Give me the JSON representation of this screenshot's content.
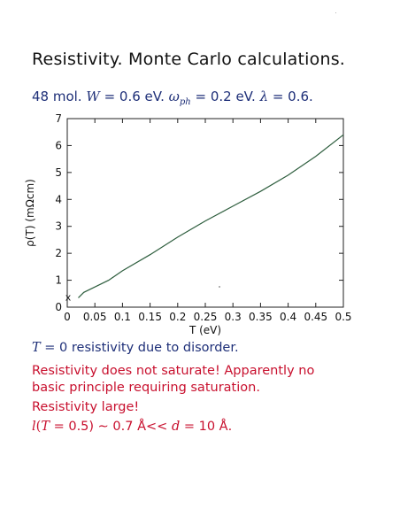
{
  "title": "Resistivity.  Monte Carlo calculations.",
  "params": {
    "prefix": "48 mol.",
    "W_symbol": "W",
    "W_value": " = 0.6 eV.",
    "omega_symbol": "ω",
    "omega_sub": "ph",
    "omega_value": " = 0.2 eV.",
    "lambda_symbol": "λ",
    "lambda_value": " = 0.6."
  },
  "chart_data": {
    "type": "line",
    "xlabel": "T (eV)",
    "ylabel": "ρ(T) (mΩcm)",
    "xlim": [
      0,
      0.5
    ],
    "ylim": [
      0,
      7
    ],
    "xticks": [
      "0",
      "0.05",
      "0.1",
      "0.15",
      "0.2",
      "0.25",
      "0.3",
      "0.35",
      "0.4",
      "0.45",
      "0.5"
    ],
    "yticks": [
      "0",
      "1",
      "2",
      "3",
      "4",
      "5",
      "6",
      "7"
    ],
    "grid": false,
    "line_color": "#2e5e3e",
    "series": [
      {
        "x": [
          0.02,
          0.03,
          0.05,
          0.075,
          0.1,
          0.15,
          0.2,
          0.25,
          0.3,
          0.35,
          0.4,
          0.45,
          0.5
        ],
        "values": [
          0.35,
          0.55,
          0.75,
          1.0,
          1.35,
          1.95,
          2.6,
          3.2,
          3.75,
          4.3,
          4.9,
          5.6,
          6.4
        ]
      }
    ],
    "marker": {
      "label": "x",
      "x": 0.0,
      "y": 0.25
    }
  },
  "lines": {
    "l1_symbol": "T",
    "l1_text": " = 0 resistivity due to disorder.",
    "l2a": "Resistivity does not saturate!  Apparently no",
    "l2b": "basic principle requiring saturation.",
    "l3": "Resistivity large!",
    "l4_l": "l",
    "l4_open": "(",
    "l4_T": "T",
    "l4_mid": " = 0.5) ∼ 0.7 Å<< ",
    "l4_d": "d",
    "l4_end": " = 10 Å."
  },
  "colors": {
    "blue_text": "#1e2f78",
    "red_text": "#c8102e",
    "curve": "#2e5e3e"
  }
}
